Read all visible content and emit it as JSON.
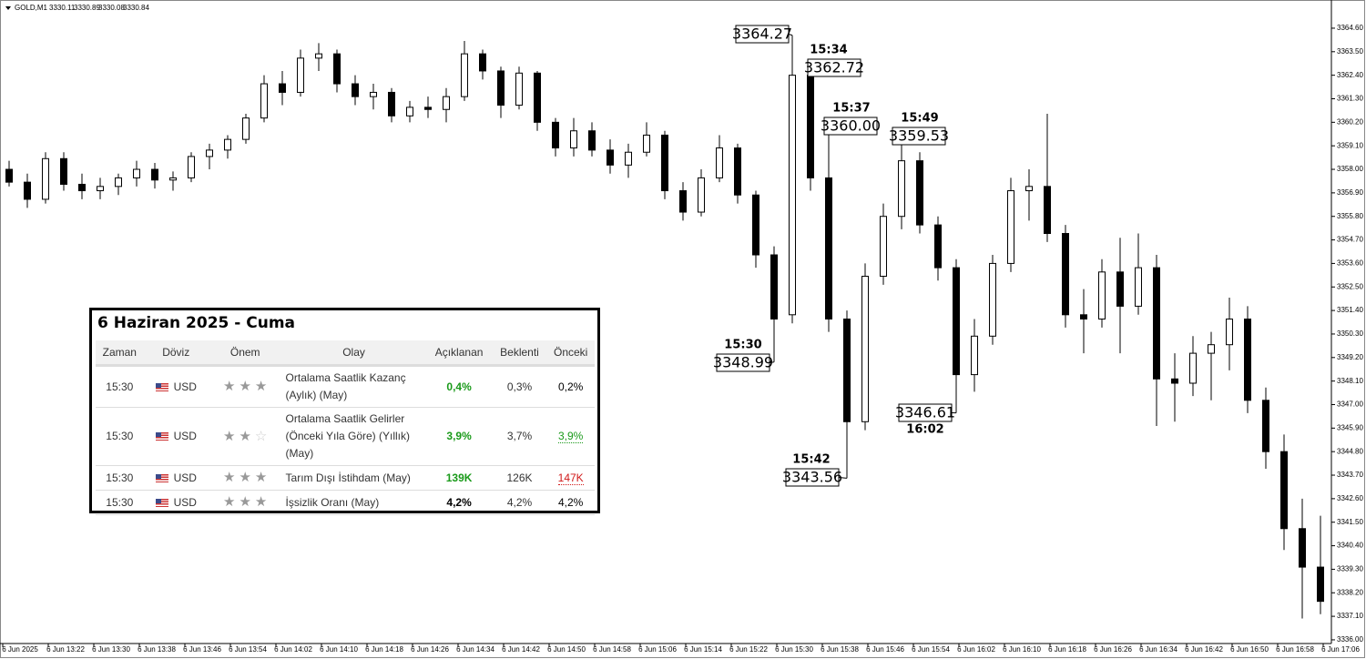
{
  "header": {
    "symbol": "GOLD,M1",
    "ohlc": [
      3330.11,
      3330.89,
      3330.08,
      3330.84
    ]
  },
  "chart_data": {
    "type": "candlestick",
    "ylim": [
      3335.87,
      3365.79
    ],
    "yticks": [
      {
        "value": 3364.6,
        "label": "3364.60"
      },
      {
        "value": 3363.5,
        "label": "3363.50"
      },
      {
        "value": 3362.4,
        "label": "3362.40"
      },
      {
        "value": 3361.3,
        "label": "3361.30"
      },
      {
        "value": 3360.2,
        "label": "3360.20"
      },
      {
        "value": 3359.1,
        "label": "3359.10"
      },
      {
        "value": 3358,
        "label": "3358.00"
      },
      {
        "value": 3356.9,
        "label": "3356.90"
      },
      {
        "value": 3355.8,
        "label": "3355.80"
      },
      {
        "value": 3354.7,
        "label": "3354.70"
      },
      {
        "value": 3353.6,
        "label": "3353.60"
      },
      {
        "value": 3352.5,
        "label": "3352.50"
      },
      {
        "value": 3351.4,
        "label": "3351.40"
      },
      {
        "value": 3350.3,
        "label": "3350.30"
      },
      {
        "value": 3349.2,
        "label": "3349.20"
      },
      {
        "value": 3348.1,
        "label": "3348.10"
      },
      {
        "value": 3347,
        "label": "3347.00"
      },
      {
        "value": 3345.9,
        "label": "3345.90"
      },
      {
        "value": 3344.8,
        "label": "3344.80"
      },
      {
        "value": 3343.7,
        "label": "3343.70"
      },
      {
        "value": 3342.6,
        "label": "3342.60"
      },
      {
        "value": 3341.5,
        "label": "3341.50"
      },
      {
        "value": 3340.4,
        "label": "3340.40"
      },
      {
        "value": 3339.3,
        "label": "3339.30"
      },
      {
        "value": 3338.2,
        "label": "3338.20"
      },
      {
        "value": 3337.1,
        "label": "3337.10"
      },
      {
        "value": 3336,
        "label": "3336.00"
      }
    ],
    "x_labels": [
      "6 Jun 2025",
      "6 Jun 13:22",
      "6 Jun 13:30",
      "6 Jun 13:38",
      "6 Jun 13:46",
      "6 Jun 13:54",
      "6 Jun 14:02",
      "6 Jun 14:10",
      "6 Jun 14:18",
      "6 Jun 14:26",
      "6 Jun 14:34",
      "6 Jun 14:42",
      "6 Jun 14:50",
      "6 Jun 14:58",
      "6 Jun 15:06",
      "6 Jun 15:14",
      "6 Jun 15:22",
      "6 Jun 15:30",
      "6 Jun 15:38",
      "6 Jun 15:46",
      "6 Jun 15:54",
      "6 Jun 16:02",
      "6 Jun 16:10",
      "6 Jun 16:18",
      "6 Jun 16:26",
      "6 Jun 16:34",
      "6 Jun 16:42",
      "6 Jun 16:50",
      "6 Jun 16:58",
      "6 Jun 17:06"
    ],
    "up_color": "#ffffff",
    "down_color": "#000000",
    "outline_color": "#000000",
    "candles": [
      [
        3358.0,
        3358.4,
        3357.2,
        3357.4
      ],
      [
        3357.4,
        3357.8,
        3356.2,
        3356.6
      ],
      [
        3356.6,
        3358.8,
        3356.4,
        3358.5
      ],
      [
        3358.5,
        3358.8,
        3357.0,
        3357.3
      ],
      [
        3357.3,
        3357.8,
        3356.6,
        3357.0
      ],
      [
        3357.0,
        3357.6,
        3356.6,
        3357.2
      ],
      [
        3357.2,
        3357.8,
        3356.8,
        3357.6
      ],
      [
        3357.6,
        3358.4,
        3357.2,
        3358.0
      ],
      [
        3358.0,
        3358.3,
        3357.1,
        3357.5
      ],
      [
        3357.5,
        3357.9,
        3357.0,
        3357.6
      ],
      [
        3357.6,
        3358.8,
        3357.4,
        3358.6
      ],
      [
        3358.6,
        3359.2,
        3358.0,
        3358.9
      ],
      [
        3358.9,
        3359.6,
        3358.5,
        3359.4
      ],
      [
        3359.4,
        3360.6,
        3359.2,
        3360.4
      ],
      [
        3360.4,
        3362.4,
        3360.2,
        3362.0
      ],
      [
        3362.0,
        3362.6,
        3361.0,
        3361.6
      ],
      [
        3361.6,
        3363.6,
        3361.4,
        3363.2
      ],
      [
        3363.2,
        3363.9,
        3362.6,
        3363.4
      ],
      [
        3363.4,
        3363.6,
        3361.6,
        3362.0
      ],
      [
        3362.0,
        3362.4,
        3361.0,
        3361.4
      ],
      [
        3361.4,
        3362.0,
        3360.8,
        3361.6
      ],
      [
        3361.6,
        3361.8,
        3360.2,
        3360.5
      ],
      [
        3360.5,
        3361.2,
        3360.2,
        3360.9
      ],
      [
        3360.9,
        3361.4,
        3360.4,
        3360.8
      ],
      [
        3360.8,
        3361.8,
        3360.2,
        3361.4
      ],
      [
        3361.4,
        3364.0,
        3361.2,
        3363.4
      ],
      [
        3363.4,
        3363.6,
        3362.2,
        3362.6
      ],
      [
        3362.6,
        3362.8,
        3360.4,
        3361.0
      ],
      [
        3361.0,
        3362.8,
        3360.8,
        3362.5
      ],
      [
        3362.5,
        3362.6,
        3359.8,
        3360.2
      ],
      [
        3360.2,
        3360.4,
        3358.6,
        3359.0
      ],
      [
        3359.0,
        3360.4,
        3358.6,
        3359.8
      ],
      [
        3359.8,
        3360.2,
        3358.6,
        3358.9
      ],
      [
        3358.9,
        3359.4,
        3357.8,
        3358.2
      ],
      [
        3358.2,
        3359.2,
        3357.6,
        3358.8
      ],
      [
        3358.8,
        3360.2,
        3358.6,
        3359.6
      ],
      [
        3359.6,
        3359.8,
        3356.6,
        3357.0
      ],
      [
        3357.0,
        3357.4,
        3355.6,
        3356.0
      ],
      [
        3356.0,
        3358.0,
        3355.8,
        3357.6
      ],
      [
        3357.6,
        3359.6,
        3357.4,
        3359.0
      ],
      [
        3359.0,
        3359.2,
        3356.4,
        3356.8
      ],
      [
        3356.8,
        3357.0,
        3353.4,
        3354.0
      ],
      [
        3354.0,
        3354.4,
        3348.99,
        3351.0
      ],
      [
        3351.2,
        3364.27,
        3350.8,
        3362.4
      ],
      [
        3362.4,
        3362.72,
        3357.0,
        3357.6
      ],
      [
        3357.6,
        3360.0,
        3350.4,
        3351.0
      ],
      [
        3351.0,
        3351.4,
        3343.56,
        3346.2
      ],
      [
        3346.2,
        3353.6,
        3345.8,
        3353.0
      ],
      [
        3353.0,
        3356.4,
        3352.6,
        3355.8
      ],
      [
        3355.8,
        3359.53,
        3355.2,
        3358.4
      ],
      [
        3358.4,
        3358.8,
        3355.0,
        3355.4
      ],
      [
        3355.4,
        3355.8,
        3352.8,
        3353.4
      ],
      [
        3353.4,
        3353.8,
        3346.61,
        3348.4
      ],
      [
        3348.4,
        3351.0,
        3347.6,
        3350.2
      ],
      [
        3350.2,
        3354.0,
        3349.8,
        3353.6
      ],
      [
        3353.6,
        3357.6,
        3353.2,
        3357.0
      ],
      [
        3357.0,
        3358.0,
        3355.6,
        3357.2
      ],
      [
        3357.2,
        3360.6,
        3354.6,
        3355.0
      ],
      [
        3355.0,
        3355.4,
        3350.6,
        3351.2
      ],
      [
        3351.2,
        3352.4,
        3349.4,
        3351.0
      ],
      [
        3351.0,
        3353.8,
        3350.6,
        3353.2
      ],
      [
        3353.2,
        3354.8,
        3349.4,
        3351.6
      ],
      [
        3351.6,
        3355.0,
        3351.2,
        3353.4
      ],
      [
        3353.4,
        3354.0,
        3346.0,
        3348.2
      ],
      [
        3348.2,
        3349.4,
        3346.2,
        3348.0
      ],
      [
        3348.0,
        3350.2,
        3347.4,
        3349.4
      ],
      [
        3349.4,
        3350.4,
        3347.2,
        3349.8
      ],
      [
        3349.8,
        3352.0,
        3348.6,
        3351.0
      ],
      [
        3351.0,
        3351.6,
        3346.6,
        3347.2
      ],
      [
        3347.2,
        3347.8,
        3344.0,
        3344.8
      ],
      [
        3344.8,
        3345.6,
        3340.2,
        3341.2
      ],
      [
        3341.2,
        3342.6,
        3337.0,
        3339.4
      ],
      [
        3339.4,
        3341.8,
        3337.2,
        3337.8
      ]
    ],
    "annotations": [
      {
        "price": 3364.27
      },
      {
        "time": "15:34",
        "price": 3362.72
      },
      {
        "time": "15:37",
        "price": 3360,
        "price_label": "3360.00"
      },
      {
        "time": "15:49",
        "price": 3359.53
      },
      {
        "time": "15:30",
        "price": 3348.99
      },
      {
        "time": "15:42",
        "price": 3343.56
      },
      {
        "time": "16:02",
        "price": 3346.61
      }
    ]
  },
  "calendar": {
    "title": "6 Haziran 2025 - Cuma",
    "headers": [
      "Zaman",
      "Döviz",
      "Önem",
      "Olay",
      "Açıklanan",
      "Beklenti",
      "Önceki"
    ],
    "rows": [
      {
        "time": "15:30",
        "currency": "USD",
        "importance": 3,
        "event": "Ortalama Saatlik Kazanç (Aylık) (May)",
        "actual": "0,4%",
        "forecast": "0,3%",
        "previous": "0,2%",
        "actual_color": "#1a9a1a",
        "previous_color": "#000000"
      },
      {
        "time": "15:30",
        "currency": "USD",
        "importance": 2,
        "event": "Ortalama Saatlik Gelirler (Önceki Yıla Göre) (Yıllık) (May)",
        "actual": "3,9%",
        "forecast": "3,7%",
        "previous": "3,9%",
        "actual_color": "#1a9a1a",
        "previous_color": "#1a9a1a"
      },
      {
        "time": "15:30",
        "currency": "USD",
        "importance": 3,
        "event": "Tarım Dışı İstihdam (May)",
        "actual": "139K",
        "forecast": "126K",
        "previous": "147K",
        "actual_color": "#1a9a1a",
        "previous_color": "#d11a1a"
      },
      {
        "time": "15:30",
        "currency": "USD",
        "importance": 3,
        "event": "İşsizlik Oranı (May)",
        "actual": "4,2%",
        "forecast": "4,2%",
        "previous": "4,2%",
        "actual_color": "#000000",
        "previous_color": "#000000"
      }
    ]
  }
}
